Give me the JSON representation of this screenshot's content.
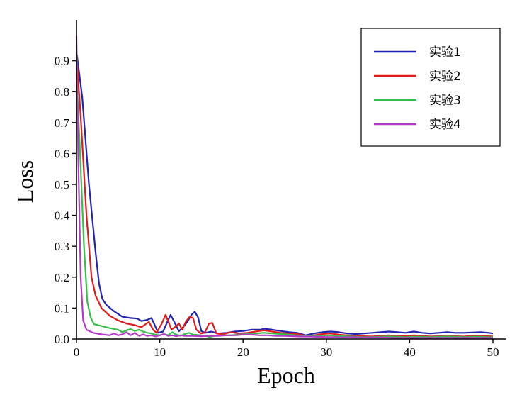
{
  "chart_data": {
    "type": "line",
    "xlabel": "Epoch",
    "ylabel": "Loss",
    "xlim": [
      0,
      52
    ],
    "ylim": [
      0,
      1.05
    ],
    "xticks": [
      0,
      10,
      20,
      30,
      40,
      50
    ],
    "yticks": [
      0.0,
      0.1,
      0.2,
      0.3,
      0.4,
      0.5,
      0.6,
      0.7,
      0.8,
      0.9
    ],
    "grid": false,
    "legend_position": "top-right",
    "series": [
      {
        "name": "实验1",
        "color": "#2323b4",
        "points": [
          [
            0,
            0.93
          ],
          [
            0.7,
            0.78
          ],
          [
            1.5,
            0.5
          ],
          [
            2.3,
            0.28
          ],
          [
            2.7,
            0.18
          ],
          [
            3.1,
            0.13
          ],
          [
            3.6,
            0.11
          ],
          [
            4.5,
            0.09
          ],
          [
            5.5,
            0.072
          ],
          [
            6.5,
            0.068
          ],
          [
            7.3,
            0.066
          ],
          [
            7.8,
            0.058
          ],
          [
            8.5,
            0.062
          ],
          [
            9.0,
            0.068
          ],
          [
            9.4,
            0.045
          ],
          [
            9.8,
            0.02
          ],
          [
            10.4,
            0.024
          ],
          [
            10.9,
            0.055
          ],
          [
            11.3,
            0.078
          ],
          [
            11.8,
            0.052
          ],
          [
            12.3,
            0.025
          ],
          [
            12.8,
            0.038
          ],
          [
            13.3,
            0.055
          ],
          [
            13.8,
            0.078
          ],
          [
            14.2,
            0.088
          ],
          [
            14.6,
            0.07
          ],
          [
            15.0,
            0.025
          ],
          [
            15.5,
            0.02
          ],
          [
            16.2,
            0.024
          ],
          [
            17,
            0.018
          ],
          [
            18,
            0.02
          ],
          [
            19,
            0.024
          ],
          [
            20,
            0.026
          ],
          [
            21,
            0.03
          ],
          [
            22,
            0.03
          ],
          [
            22.6,
            0.033
          ],
          [
            23.5,
            0.03
          ],
          [
            24.5,
            0.026
          ],
          [
            25.5,
            0.022
          ],
          [
            26.5,
            0.02
          ],
          [
            27.5,
            0.012
          ],
          [
            28.5,
            0.018
          ],
          [
            29.5,
            0.022
          ],
          [
            30.5,
            0.024
          ],
          [
            31.5,
            0.022
          ],
          [
            32.5,
            0.018
          ],
          [
            33.5,
            0.016
          ],
          [
            34.5,
            0.018
          ],
          [
            35.5,
            0.02
          ],
          [
            36.5,
            0.022
          ],
          [
            37.5,
            0.024
          ],
          [
            38.5,
            0.022
          ],
          [
            39.5,
            0.02
          ],
          [
            40.5,
            0.024
          ],
          [
            41.5,
            0.02
          ],
          [
            42.5,
            0.018
          ],
          [
            43.5,
            0.02
          ],
          [
            44.5,
            0.022
          ],
          [
            45.5,
            0.02
          ],
          [
            46.5,
            0.02
          ],
          [
            47.5,
            0.021
          ],
          [
            48.5,
            0.022
          ],
          [
            49.5,
            0.02
          ],
          [
            50,
            0.018
          ]
        ]
      },
      {
        "name": "实验2",
        "color": "#e31a1a",
        "points": [
          [
            0,
            0.92
          ],
          [
            0.5,
            0.72
          ],
          [
            1.2,
            0.4
          ],
          [
            1.8,
            0.2
          ],
          [
            2.3,
            0.14
          ],
          [
            3.0,
            0.1
          ],
          [
            4.0,
            0.075
          ],
          [
            5.0,
            0.06
          ],
          [
            6.0,
            0.05
          ],
          [
            7.0,
            0.045
          ],
          [
            7.8,
            0.038
          ],
          [
            8.3,
            0.048
          ],
          [
            8.7,
            0.055
          ],
          [
            9.2,
            0.03
          ],
          [
            9.6,
            0.02
          ],
          [
            10.2,
            0.048
          ],
          [
            10.7,
            0.078
          ],
          [
            11.0,
            0.058
          ],
          [
            11.4,
            0.03
          ],
          [
            11.9,
            0.04
          ],
          [
            12.3,
            0.05
          ],
          [
            12.7,
            0.03
          ],
          [
            13.1,
            0.055
          ],
          [
            13.6,
            0.072
          ],
          [
            14.0,
            0.068
          ],
          [
            14.4,
            0.03
          ],
          [
            14.9,
            0.018
          ],
          [
            15.4,
            0.02
          ],
          [
            15.9,
            0.05
          ],
          [
            16.3,
            0.052
          ],
          [
            16.8,
            0.018
          ],
          [
            17.5,
            0.015
          ],
          [
            18.5,
            0.022
          ],
          [
            19.5,
            0.018
          ],
          [
            20.5,
            0.02
          ],
          [
            21.5,
            0.024
          ],
          [
            22.5,
            0.028
          ],
          [
            23.5,
            0.024
          ],
          [
            24.5,
            0.02
          ],
          [
            25.5,
            0.018
          ],
          [
            26.5,
            0.016
          ],
          [
            27.5,
            0.01
          ],
          [
            28.5,
            0.012
          ],
          [
            29.5,
            0.016
          ],
          [
            30.5,
            0.018
          ],
          [
            31.5,
            0.014
          ],
          [
            32.5,
            0.012
          ],
          [
            33.5,
            0.01
          ],
          [
            34.5,
            0.009
          ],
          [
            35.5,
            0.008
          ],
          [
            36.5,
            0.01
          ],
          [
            37.5,
            0.012
          ],
          [
            38.5,
            0.009
          ],
          [
            39.5,
            0.01
          ],
          [
            40.5,
            0.012
          ],
          [
            41.5,
            0.01
          ],
          [
            42.5,
            0.008
          ],
          [
            43.5,
            0.009
          ],
          [
            44.5,
            0.01
          ],
          [
            45.5,
            0.009
          ],
          [
            46.5,
            0.008
          ],
          [
            47.5,
            0.01
          ],
          [
            48.5,
            0.01
          ],
          [
            49.5,
            0.009
          ],
          [
            50,
            0.008
          ]
        ]
      },
      {
        "name": "实验3",
        "color": "#35c04a",
        "points": [
          [
            0,
            0.86
          ],
          [
            0.4,
            0.62
          ],
          [
            0.9,
            0.3
          ],
          [
            1.3,
            0.12
          ],
          [
            1.7,
            0.07
          ],
          [
            2.1,
            0.048
          ],
          [
            3.0,
            0.042
          ],
          [
            4.0,
            0.035
          ],
          [
            5.0,
            0.03
          ],
          [
            5.5,
            0.022
          ],
          [
            6.0,
            0.028
          ],
          [
            6.5,
            0.032
          ],
          [
            7.0,
            0.026
          ],
          [
            7.5,
            0.03
          ],
          [
            8.0,
            0.024
          ],
          [
            8.5,
            0.02
          ],
          [
            9.0,
            0.018
          ],
          [
            9.5,
            0.014
          ],
          [
            10.0,
            0.012
          ],
          [
            10.5,
            0.016
          ],
          [
            11.0,
            0.012
          ],
          [
            11.5,
            0.022
          ],
          [
            12.0,
            0.014
          ],
          [
            12.5,
            0.01
          ],
          [
            13.0,
            0.016
          ],
          [
            13.5,
            0.02
          ],
          [
            14.0,
            0.014
          ],
          [
            15.0,
            0.012
          ],
          [
            15.5,
            0.01
          ],
          [
            16.0,
            0.006
          ],
          [
            16.5,
            0.01
          ],
          [
            17.5,
            0.012
          ],
          [
            18.5,
            0.012
          ],
          [
            19.5,
            0.014
          ],
          [
            20.5,
            0.016
          ],
          [
            21.5,
            0.018
          ],
          [
            22.5,
            0.02
          ],
          [
            23.5,
            0.018
          ],
          [
            24.5,
            0.016
          ],
          [
            25.5,
            0.014
          ],
          [
            26.5,
            0.012
          ],
          [
            27.5,
            0.01
          ],
          [
            28.5,
            0.012
          ],
          [
            29.5,
            0.01
          ],
          [
            30.5,
            0.012
          ],
          [
            31.5,
            0.01
          ],
          [
            32.5,
            0.008
          ],
          [
            33.5,
            0.007
          ],
          [
            34.5,
            0.006
          ],
          [
            35.5,
            0.006
          ],
          [
            36.5,
            0.007
          ],
          [
            37.5,
            0.008
          ],
          [
            38.5,
            0.007
          ],
          [
            39.5,
            0.006
          ],
          [
            40.5,
            0.007
          ],
          [
            41.5,
            0.007
          ],
          [
            42.5,
            0.006
          ],
          [
            43.5,
            0.007
          ],
          [
            44.5,
            0.008
          ],
          [
            45.5,
            0.007
          ],
          [
            46.5,
            0.006
          ],
          [
            47.5,
            0.007
          ],
          [
            48.5,
            0.007
          ],
          [
            49.5,
            0.006
          ],
          [
            50,
            0.006
          ]
        ]
      },
      {
        "name": "实验4",
        "color": "#b439c8",
        "points": [
          [
            0,
            0.98
          ],
          [
            0.2,
            0.6
          ],
          [
            0.5,
            0.2
          ],
          [
            0.8,
            0.06
          ],
          [
            1.2,
            0.03
          ],
          [
            2.0,
            0.02
          ],
          [
            3.0,
            0.015
          ],
          [
            4.0,
            0.012
          ],
          [
            4.5,
            0.018
          ],
          [
            5.0,
            0.012
          ],
          [
            5.5,
            0.015
          ],
          [
            6.0,
            0.022
          ],
          [
            6.5,
            0.012
          ],
          [
            7.0,
            0.02
          ],
          [
            7.5,
            0.01
          ],
          [
            8.0,
            0.015
          ],
          [
            8.5,
            0.01
          ],
          [
            9.0,
            0.012
          ],
          [
            9.5,
            0.008
          ],
          [
            10.0,
            0.012
          ],
          [
            10.5,
            0.016
          ],
          [
            11.0,
            0.01
          ],
          [
            11.5,
            0.012
          ],
          [
            12.0,
            0.009
          ],
          [
            12.5,
            0.012
          ],
          [
            13.0,
            0.01
          ],
          [
            14.0,
            0.01
          ],
          [
            15.0,
            0.009
          ],
          [
            16.0,
            0.01
          ],
          [
            17.0,
            0.01
          ],
          [
            18.0,
            0.012
          ],
          [
            19.0,
            0.012
          ],
          [
            20.0,
            0.014
          ],
          [
            21.0,
            0.014
          ],
          [
            22.0,
            0.012
          ],
          [
            23.0,
            0.012
          ],
          [
            24.0,
            0.01
          ],
          [
            25.0,
            0.01
          ],
          [
            26.0,
            0.009
          ],
          [
            27.0,
            0.008
          ],
          [
            28.0,
            0.008
          ],
          [
            29.0,
            0.007
          ],
          [
            30.0,
            0.006
          ],
          [
            31.0,
            0.006
          ],
          [
            32.0,
            0.005
          ],
          [
            33.0,
            0.006
          ],
          [
            34.0,
            0.005
          ],
          [
            35.0,
            0.005
          ],
          [
            36.0,
            0.005
          ],
          [
            37.0,
            0.005
          ],
          [
            38.0,
            0.004
          ],
          [
            39.0,
            0.004
          ],
          [
            40.0,
            0.004
          ],
          [
            41.0,
            0.004
          ],
          [
            42.0,
            0.004
          ],
          [
            43.0,
            0.004
          ],
          [
            44.0,
            0.004
          ],
          [
            45.0,
            0.004
          ],
          [
            46.0,
            0.004
          ],
          [
            47.0,
            0.004
          ],
          [
            48.0,
            0.004
          ],
          [
            49.0,
            0.004
          ],
          [
            50,
            0.004
          ]
        ]
      }
    ]
  }
}
